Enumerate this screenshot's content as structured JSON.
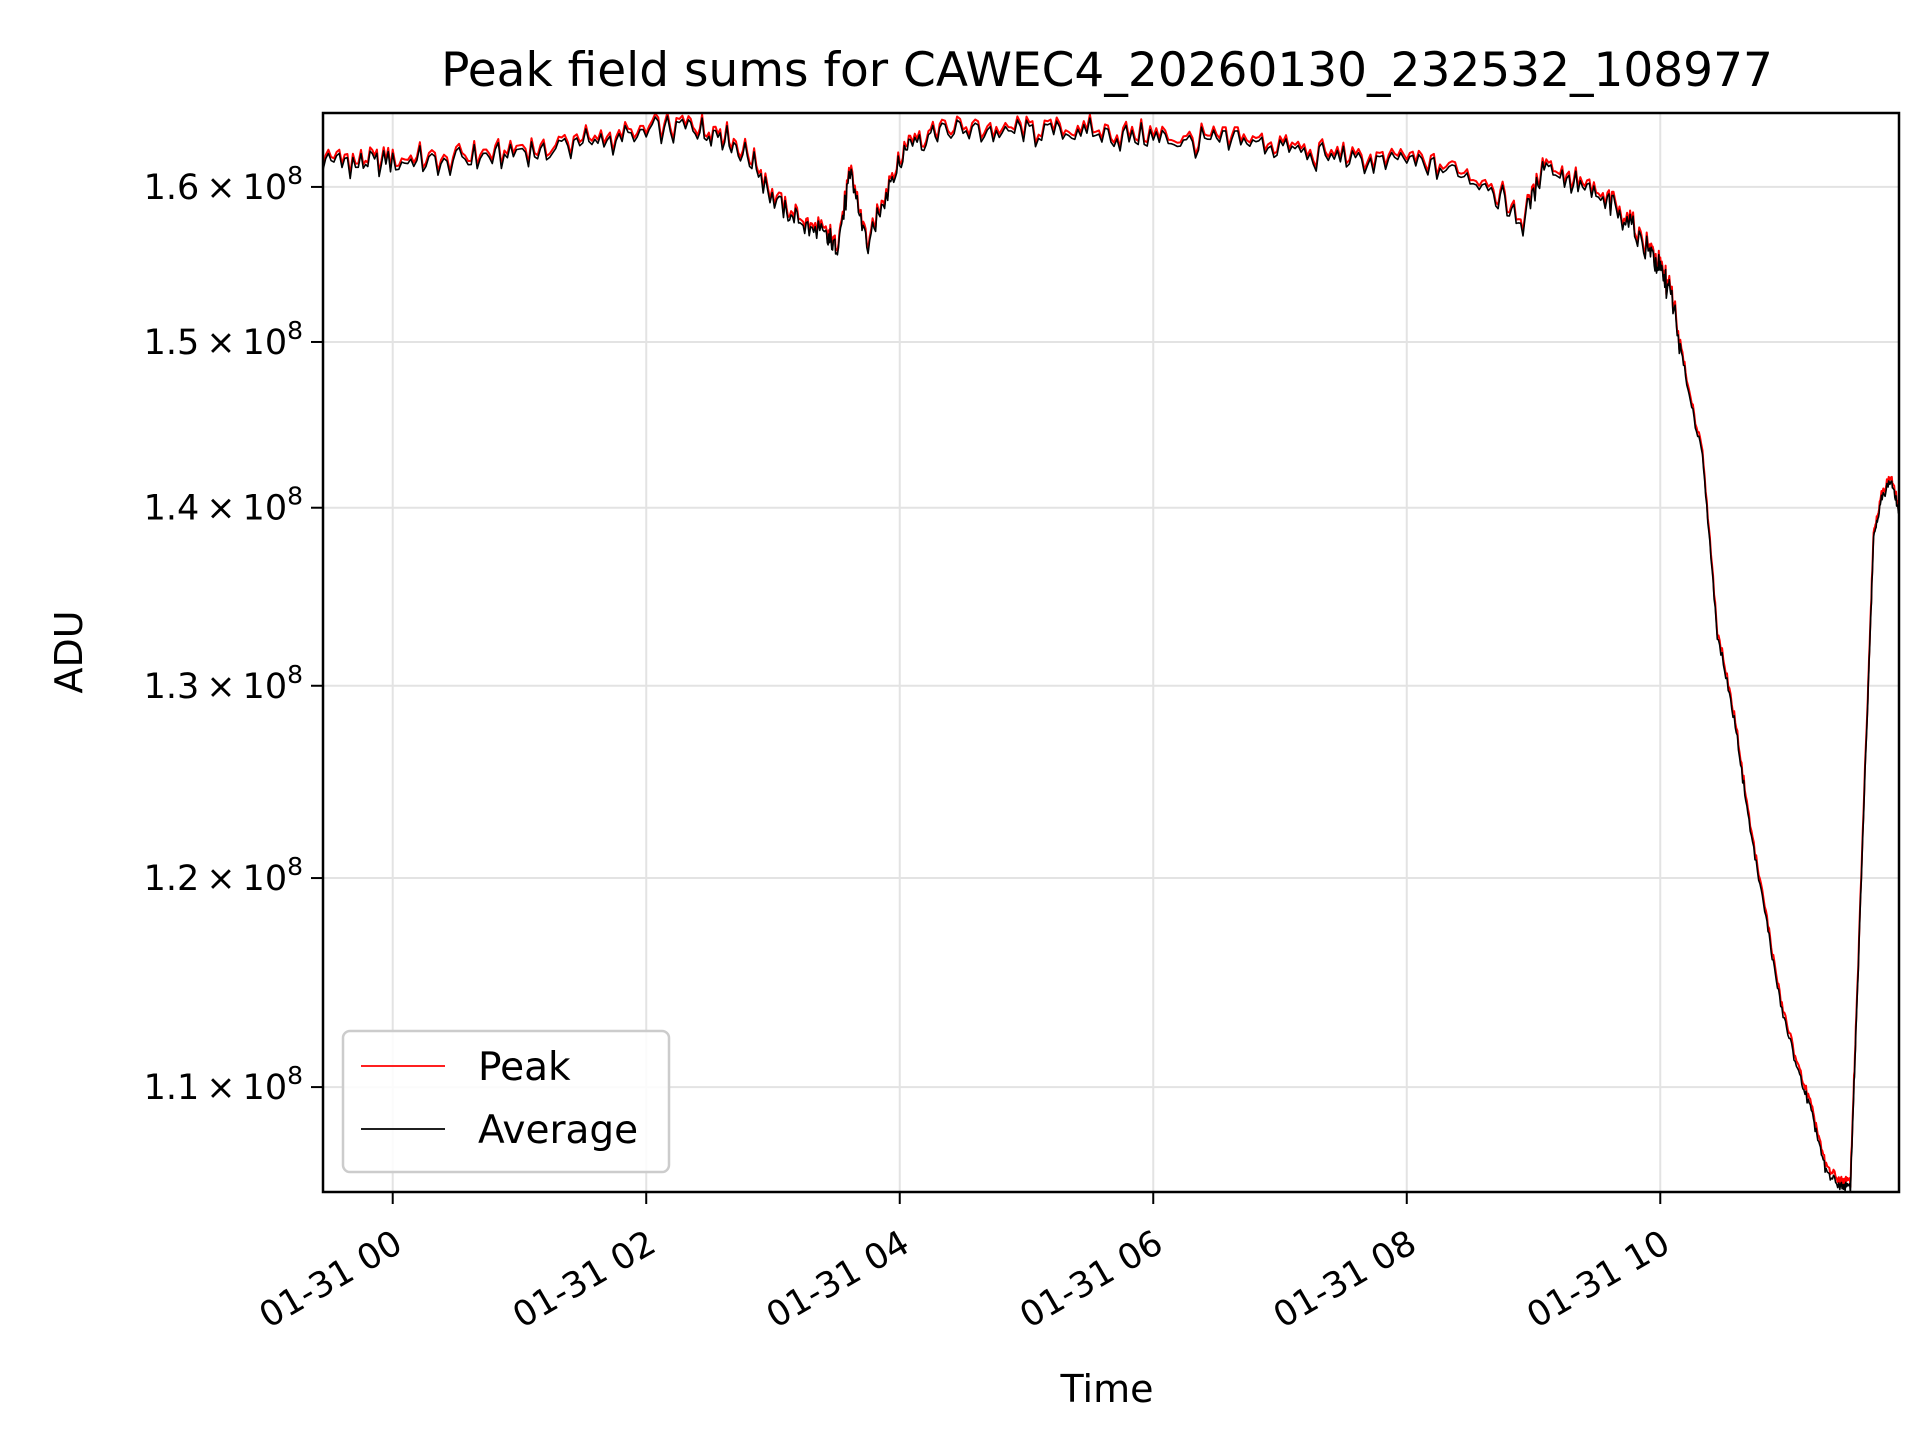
{
  "chart_data": {
    "type": "line",
    "title": "Peak field sums for CAWEC4_20260130_232532_108977",
    "xlabel": "Time",
    "ylabel": "ADU",
    "x_axis": "time",
    "xlim": [
      "01-30 23:27",
      "01-31 11:53"
    ],
    "ylim": [
      105300000,
      165000000
    ],
    "yscale": "log",
    "grid": true,
    "legend_position": "lower-left",
    "x_ticks": [
      "01-31 00",
      "01-31 02",
      "01-31 04",
      "01-31 06",
      "01-31 08",
      "01-31 10"
    ],
    "x_tick_times": [
      "01-31 00:00",
      "01-31 02:00",
      "01-31 04:00",
      "01-31 06:00",
      "01-31 08:00",
      "01-31 10:00"
    ],
    "y_ticks": [
      {
        "value": 110000000,
        "mantissa": "1.1",
        "exponent": "8"
      },
      {
        "value": 120000000,
        "mantissa": "1.2",
        "exponent": "8"
      },
      {
        "value": 130000000,
        "mantissa": "1.3",
        "exponent": "8"
      },
      {
        "value": 140000000,
        "mantissa": "1.4",
        "exponent": "8"
      },
      {
        "value": 150000000,
        "mantissa": "1.5",
        "exponent": "8"
      },
      {
        "value": 160000000,
        "mantissa": "1.6",
        "exponent": "8"
      }
    ],
    "x": [
      "01-30 23:27",
      "01-30 23:45",
      "01-31 00:00",
      "01-31 00:20",
      "01-31 00:40",
      "01-31 01:00",
      "01-31 01:20",
      "01-31 01:40",
      "01-31 02:00",
      "01-31 02:20",
      "01-31 02:35",
      "01-31 02:50",
      "01-31 03:05",
      "01-31 03:15",
      "01-31 03:25",
      "01-31 03:30",
      "01-31 03:37",
      "01-31 03:45",
      "01-31 03:55",
      "01-31 04:05",
      "01-31 04:20",
      "01-31 04:40",
      "01-31 05:00",
      "01-31 05:20",
      "01-31 05:40",
      "01-31 06:00",
      "01-31 06:20",
      "01-31 06:40",
      "01-31 07:00",
      "01-31 07:20",
      "01-31 07:40",
      "01-31 08:00",
      "01-31 08:20",
      "01-31 08:40",
      "01-31 08:55",
      "01-31 09:05",
      "01-31 09:20",
      "01-31 09:35",
      "01-31 09:45",
      "01-31 09:55",
      "01-31 10:00",
      "01-31 10:05",
      "01-31 10:12",
      "01-31 10:20",
      "01-31 10:27",
      "01-31 10:35",
      "01-31 10:42",
      "01-31 10:50",
      "01-31 10:57",
      "01-31 11:05",
      "01-31 11:12",
      "01-31 11:18",
      "01-31 11:25",
      "01-31 11:30",
      "01-31 11:33",
      "01-31 11:38",
      "01-31 11:41",
      "01-31 11:45",
      "01-31 11:49",
      "01-31 11:53"
    ],
    "series": [
      {
        "name": "Peak",
        "color": "#ff0000",
        "offset": 250000,
        "values": [
          161900000,
          161400000,
          161800000,
          161700000,
          161900000,
          162300000,
          162700000,
          163100000,
          163600000,
          164000000,
          163600000,
          161700000,
          158300000,
          157500000,
          156700000,
          156000000,
          160700000,
          156000000,
          160200000,
          163000000,
          163900000,
          163700000,
          163600000,
          163800000,
          163300000,
          163300000,
          163000000,
          163100000,
          162700000,
          162000000,
          161700000,
          161700000,
          161200000,
          160000000,
          157500000,
          161800000,
          160100000,
          158900000,
          157600000,
          155700000,
          154400000,
          153000000,
          147800000,
          143000000,
          132800000,
          128200000,
          122800000,
          118000000,
          113800000,
          110800000,
          108700000,
          106300000,
          105600000,
          105500000,
          113500000,
          128500000,
          138400000,
          140600000,
          141600000,
          139800000
        ]
      },
      {
        "name": "Average",
        "color": "#000000",
        "offset": 0,
        "values": [
          161900000,
          161400000,
          161800000,
          161700000,
          161900000,
          162300000,
          162700000,
          163100000,
          163600000,
          164000000,
          163600000,
          161700000,
          158300000,
          157500000,
          156700000,
          156000000,
          160700000,
          156000000,
          160200000,
          163000000,
          163900000,
          163700000,
          163600000,
          163800000,
          163300000,
          163300000,
          163000000,
          163100000,
          162700000,
          162000000,
          161700000,
          161700000,
          161200000,
          160000000,
          157500000,
          161800000,
          160100000,
          158900000,
          157600000,
          155700000,
          154400000,
          153000000,
          147800000,
          143000000,
          132800000,
          128200000,
          122800000,
          118000000,
          113800000,
          110800000,
          108700000,
          106300000,
          105600000,
          105500000,
          113500000,
          128500000,
          138400000,
          140600000,
          141600000,
          139800000
        ]
      }
    ]
  }
}
